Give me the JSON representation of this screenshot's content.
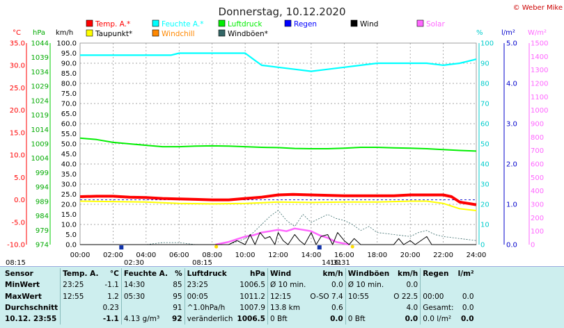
{
  "title": "Donnerstag, 10.12.2020",
  "copyright": "© Weber Mike",
  "axis_units": {
    "temp": "°C",
    "press": "hPa",
    "wind": "km/h",
    "hum": "%",
    "rain": "l/m²",
    "solar": "W/m²"
  },
  "legend": [
    {
      "label": "Temp. A.*",
      "color": "#ff0000"
    },
    {
      "label": "Feuchte A.*",
      "color": "#00ffff"
    },
    {
      "label": "Luftdruck",
      "color": "#00ee00"
    },
    {
      "label": "Regen",
      "color": "#0000ff"
    },
    {
      "label": "Wind",
      "color": "#000000"
    },
    {
      "label": "Solar",
      "color": "#ff66ff"
    },
    {
      "label": "Taupunkt*",
      "color": "#ffff00"
    },
    {
      "label": "Windchill",
      "color": "#ff8800"
    },
    {
      "label": "Windböen*",
      "color": "#336666"
    }
  ],
  "chart_data": {
    "type": "line",
    "title": "Donnerstag, 10.12.2020",
    "x_ticks": [
      "00:00",
      "02:00",
      "04:00",
      "06:00",
      "08:00",
      "10:00",
      "12:00",
      "14:00",
      "16:00",
      "18:00",
      "20:00",
      "22:00",
      "24:00"
    ],
    "axes": {
      "temp": {
        "unit": "°C",
        "min": -10,
        "max": 35,
        "ticks": [
          "35.0",
          "30.0",
          "25.0",
          "20.0",
          "15.0",
          "10.0",
          "5.0",
          "0.0",
          "-5.0",
          "-10.0"
        ]
      },
      "press": {
        "unit": "hPa",
        "min": 974,
        "max": 1044,
        "ticks": [
          "1044",
          "1039",
          "1034",
          "1029",
          "1024",
          "1019",
          "1014",
          "1009",
          "1004",
          "999",
          "994",
          "989",
          "984",
          "979",
          "974"
        ]
      },
      "wind": {
        "unit": "km/h",
        "min": 0,
        "max": 100,
        "ticks": [
          "100.0",
          "95.0",
          "90.0",
          "85.0",
          "80.0",
          "75.0",
          "70.0",
          "65.0",
          "60.0",
          "55.0",
          "50.0",
          "45.0",
          "40.0",
          "35.0",
          "30.0",
          "25.0",
          "20.0",
          "15.0",
          "10.0",
          "5.0",
          "0.0"
        ]
      },
      "hum": {
        "unit": "%",
        "min": 0,
        "max": 100,
        "ticks": [
          "100",
          "90",
          "80",
          "70",
          "60",
          "50",
          "40",
          "30",
          "20",
          "10",
          "0"
        ]
      },
      "rain": {
        "unit": "l/m²",
        "min": 0,
        "max": 5,
        "ticks": [
          "5.0",
          "4.0",
          "3.0",
          "2.0",
          "1.0",
          "0.0"
        ]
      },
      "solar": {
        "unit": "W/m²",
        "min": 0,
        "max": 1500,
        "ticks": [
          "1500",
          "1400",
          "1300",
          "1200",
          "1100",
          "1000",
          "900",
          "800",
          "700",
          "600",
          "500",
          "400",
          "300",
          "200",
          "100",
          "0"
        ]
      }
    },
    "series": [
      {
        "name": "Feuchte A.*",
        "axis": "hum",
        "color": "#00ffff",
        "x": [
          0,
          2,
          4,
          5.5,
          6,
          7,
          8,
          9,
          10,
          10.5,
          11,
          12,
          13,
          14,
          15,
          16,
          17,
          18,
          19,
          20,
          21,
          22,
          23,
          24
        ],
        "y": [
          94,
          94,
          94,
          94,
          95,
          95,
          95,
          95,
          95,
          92,
          89,
          88,
          87,
          86,
          87,
          88,
          89,
          90,
          90,
          90,
          90,
          89,
          90,
          92
        ]
      },
      {
        "name": "Luftdruck",
        "axis": "press",
        "color": "#00ee00",
        "x": [
          0,
          1,
          2,
          3,
          4,
          5,
          6,
          7,
          8,
          9,
          10,
          11,
          12,
          13,
          14,
          15,
          16,
          17,
          18,
          19,
          20,
          21,
          22,
          23,
          24
        ],
        "y": [
          1011,
          1010.5,
          1009.5,
          1009,
          1008.5,
          1008,
          1008,
          1008.2,
          1008.3,
          1008.2,
          1008,
          1007.8,
          1007.7,
          1007.4,
          1007.3,
          1007.3,
          1007.5,
          1007.8,
          1007.8,
          1007.6,
          1007.5,
          1007.3,
          1007,
          1006.7,
          1006.5
        ]
      },
      {
        "name": "Temp. A.*",
        "axis": "temp",
        "color": "#ff0000",
        "x": [
          0,
          1,
          2,
          3,
          4,
          5,
          6,
          7,
          8,
          9,
          10,
          11,
          12,
          12.9,
          14,
          15,
          16,
          17,
          18,
          19,
          20,
          21,
          22,
          22.5,
          23,
          24
        ],
        "y": [
          0.7,
          0.8,
          0.8,
          0.6,
          0.5,
          0.3,
          0.2,
          0.1,
          0.0,
          0.0,
          0.3,
          0.6,
          1.1,
          1.2,
          1.1,
          1.0,
          0.9,
          0.9,
          0.9,
          0.9,
          1.1,
          1.1,
          1.1,
          0.7,
          -0.5,
          -1.1
        ]
      },
      {
        "name": "Taupunkt*",
        "axis": "temp",
        "color": "#ffff00",
        "x": [
          0,
          2,
          4,
          6,
          8,
          10,
          12,
          14,
          16,
          18,
          20,
          21,
          22,
          23,
          24
        ],
        "y": [
          -0.3,
          -0.4,
          -0.5,
          -0.8,
          -0.9,
          -0.8,
          -0.5,
          -0.6,
          -0.5,
          -0.5,
          -0.3,
          -0.3,
          -0.8,
          -2.0,
          -2.4
        ]
      },
      {
        "name": "Solar",
        "axis": "solar",
        "color": "#ff66ff",
        "x": [
          8.2,
          9,
          10,
          10.5,
          11,
          11.5,
          12,
          12.5,
          13,
          13.5,
          14,
          14.5,
          15,
          15.5,
          16.3
        ],
        "y": [
          0,
          20,
          60,
          70,
          90,
          100,
          110,
          100,
          120,
          110,
          100,
          70,
          50,
          20,
          0
        ]
      },
      {
        "name": "Windböen*",
        "axis": "wind",
        "color": "#336666",
        "x": [
          0,
          2,
          4,
          5,
          6,
          7,
          8,
          9,
          10,
          10.5,
          11,
          11.5,
          12,
          12.5,
          13,
          13.5,
          14,
          14.5,
          15,
          15.5,
          16,
          16.5,
          17,
          17.5,
          18,
          19,
          20,
          20.5,
          21,
          21.5,
          22,
          23,
          24
        ],
        "y": [
          0,
          0,
          0,
          1,
          1,
          0,
          0,
          0,
          3,
          6,
          10,
          14,
          17,
          12,
          9,
          15,
          11,
          13,
          15,
          13,
          12,
          10,
          7,
          9,
          6,
          5,
          4,
          6,
          7,
          5,
          4,
          3,
          2
        ]
      },
      {
        "name": "Wind",
        "axis": "wind",
        "color": "#000000",
        "x": [
          0,
          6,
          9,
          9.5,
          10,
          10.3,
          10.6,
          10.9,
          11.2,
          11.5,
          11.8,
          12,
          12.3,
          12.6,
          13,
          13.3,
          13.6,
          14,
          14.3,
          14.6,
          15,
          15.3,
          15.6,
          16,
          16.3,
          16.6,
          17,
          18,
          19,
          19.3,
          19.6,
          20,
          20.3,
          21,
          21.3,
          22,
          24
        ],
        "y": [
          0,
          0,
          0,
          2,
          0,
          5,
          0,
          6,
          3,
          4,
          0,
          6,
          2,
          0,
          5,
          2,
          0,
          6,
          0,
          4,
          5,
          0,
          6,
          2,
          0,
          3,
          0,
          0,
          0,
          3,
          0,
          2,
          0,
          4,
          0,
          0,
          0
        ]
      }
    ],
    "markers": [
      {
        "label": "08:15",
        "type": "sunrise",
        "hour": 8.25
      },
      {
        "label": "02:30",
        "type": "moonrise",
        "hour": 2.5
      },
      {
        "label": "08:15",
        "type": "sunrise",
        "hour": 8.25
      },
      {
        "label": "14:31",
        "type": "moonset",
        "hour": 14.5
      },
      {
        "label": "16:31",
        "type": "sunset",
        "hour": 16.5
      }
    ]
  },
  "table": {
    "headers": [
      "Sensor",
      "Temp. A.",
      "°C",
      "Feuchte A.",
      "%",
      "Luftdruck",
      "hPa",
      "Wind",
      "km/h",
      "Windböen",
      "km/h",
      "Regen",
      "l/m²"
    ],
    "rows": [
      {
        "label": "MinWert",
        "cells": [
          "23:25",
          "-1.1",
          "14:30",
          "85",
          "23:25",
          "1006.5",
          "Ø 10 min.",
          "0.0",
          "Ø 10 min.",
          "0.0",
          "",
          ""
        ]
      },
      {
        "label": "MaxWert",
        "cells": [
          "12:55",
          "1.2",
          "05:30",
          "95",
          "00:05",
          "1011.2",
          "12:15",
          "O-SO 7.4",
          "10:55",
          "O 22.5",
          "00:00",
          "0.0"
        ]
      },
      {
        "label": "Durchschnitt",
        "cells": [
          "",
          "0.23",
          "",
          "91",
          "^1.0hPa/h",
          "1007.9",
          "13.8 km",
          "0.6",
          "",
          "4.0",
          "Gesamt:",
          "0.0"
        ]
      },
      {
        "label": "10.12. 23:55",
        "cells": [
          "",
          "-1.1",
          "4.13 g/m³",
          "92",
          "veränderlich",
          "1006.5",
          "0 Bft",
          "0.0",
          "0 Bft",
          "0.0",
          "0.0 l/m²",
          "0.0"
        ]
      }
    ]
  }
}
